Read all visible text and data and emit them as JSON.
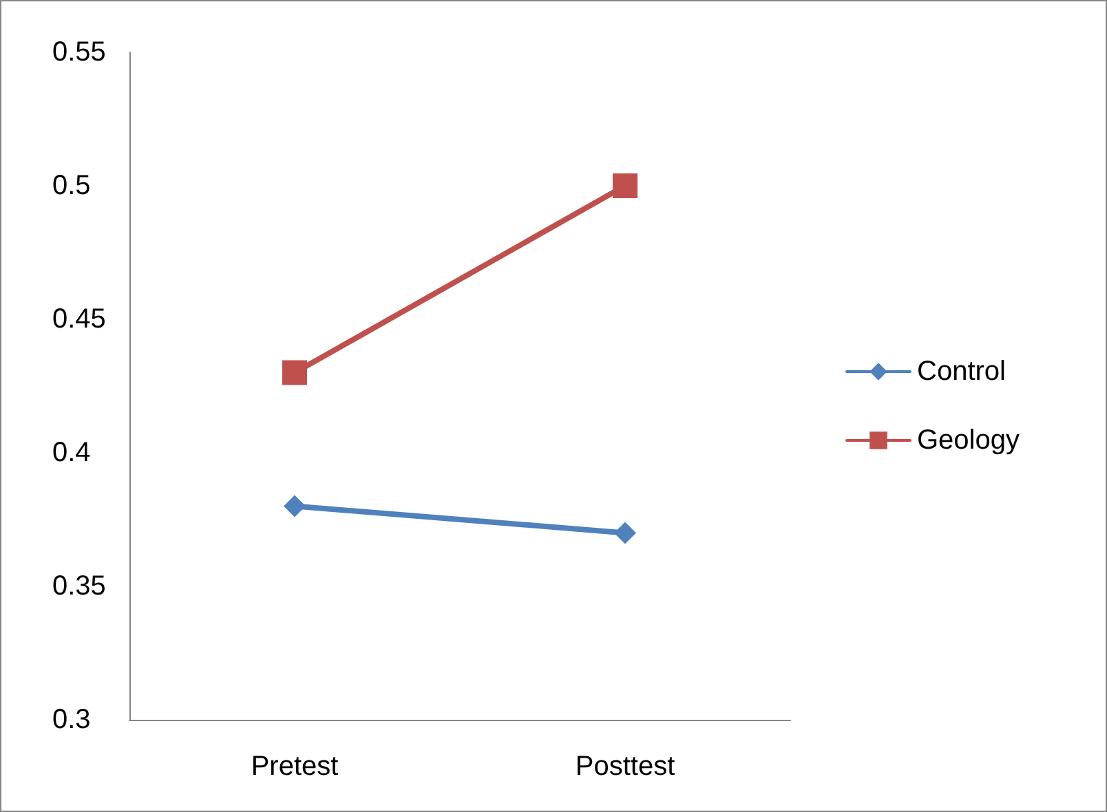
{
  "chart_data": {
    "type": "line",
    "categories": [
      "Pretest",
      "Posttest"
    ],
    "series": [
      {
        "name": "Control",
        "color": "#4f81bd",
        "values": [
          0.38,
          0.37
        ],
        "marker": "diamond"
      },
      {
        "name": "Geology",
        "color": "#c0504d",
        "values": [
          0.43,
          0.5
        ],
        "marker": "square"
      }
    ],
    "ylim": [
      0.3,
      0.55
    ],
    "yticks": [
      0.3,
      0.35,
      0.4,
      0.45,
      0.5,
      0.55
    ],
    "grid": false,
    "legend": "right",
    "line_style": "solid"
  }
}
